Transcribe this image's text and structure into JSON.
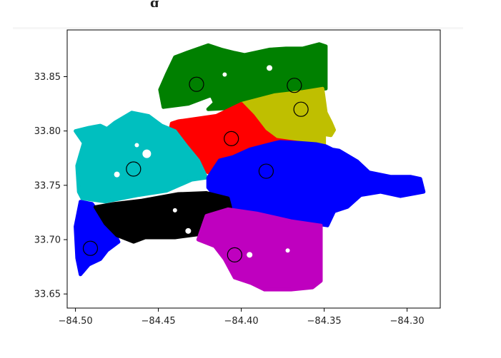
{
  "header": {
    "title_fragment": "g"
  },
  "chart_data": {
    "type": "scatter",
    "xlabel": "",
    "ylabel": "",
    "xlim": [
      -84.505,
      -84.28
    ],
    "ylim": [
      33.637,
      33.893
    ],
    "x_ticks": [
      -84.5,
      -84.45,
      -84.4,
      -84.35,
      -84.3
    ],
    "x_tick_labels": [
      "−84.50",
      "−84.45",
      "−84.40",
      "−84.35",
      "−84.30"
    ],
    "y_ticks": [
      33.65,
      33.7,
      33.75,
      33.8,
      33.85
    ],
    "y_tick_labels": [
      "33.65",
      "33.70",
      "33.75",
      "33.80",
      "33.85"
    ],
    "grid": false,
    "series": [
      {
        "color": "#008000",
        "centroids": [
          {
            "x": -84.427,
            "y": 33.843
          },
          {
            "x": -84.368,
            "y": 33.842
          }
        ],
        "region": [
          [
            -84.416,
            33.826
          ],
          [
            -84.418,
            33.833
          ],
          [
            -84.432,
            33.825
          ],
          [
            -84.447,
            33.822
          ],
          [
            -84.449,
            33.838
          ],
          [
            -84.445,
            33.852
          ],
          [
            -84.44,
            33.868
          ],
          [
            -84.433,
            33.872
          ],
          [
            -84.42,
            33.879
          ],
          [
            -84.412,
            33.875
          ],
          [
            -84.404,
            33.872
          ],
          [
            -84.398,
            33.87
          ],
          [
            -84.383,
            33.875
          ],
          [
            -84.373,
            33.876
          ],
          [
            -84.363,
            33.876
          ],
          [
            -84.353,
            33.88
          ],
          [
            -84.349,
            33.878
          ],
          [
            -84.349,
            33.839
          ],
          [
            -84.367,
            33.836
          ],
          [
            -84.38,
            33.833
          ],
          [
            -84.4,
            33.825
          ],
          [
            -84.407,
            33.821
          ],
          [
            -84.42,
            33.82
          ]
        ]
      },
      {
        "color": "#bfbf00",
        "centroids": [
          {
            "x": -84.364,
            "y": 33.82
          }
        ],
        "region": [
          [
            -84.4,
            33.825
          ],
          [
            -84.38,
            33.833
          ],
          [
            -84.363,
            33.836
          ],
          [
            -84.351,
            33.839
          ],
          [
            -84.349,
            33.817
          ],
          [
            -84.346,
            33.808
          ],
          [
            -84.344,
            33.801
          ],
          [
            -84.346,
            33.796
          ],
          [
            -84.35,
            33.797
          ],
          [
            -84.35,
            33.786
          ],
          [
            -84.355,
            33.788
          ],
          [
            -84.373,
            33.79
          ],
          [
            -84.38,
            33.791
          ],
          [
            -84.39,
            33.801
          ],
          [
            -84.395,
            33.811
          ]
        ]
      },
      {
        "color": "#ff0000",
        "centroids": [
          {
            "x": -84.406,
            "y": 33.793
          }
        ],
        "region": [
          [
            -84.442,
            33.807
          ],
          [
            -84.438,
            33.809
          ],
          [
            -84.415,
            33.814
          ],
          [
            -84.4,
            33.825
          ],
          [
            -84.393,
            33.814
          ],
          [
            -84.386,
            33.8
          ],
          [
            -84.379,
            33.792
          ],
          [
            -84.365,
            33.789
          ],
          [
            -84.379,
            33.786
          ],
          [
            -84.395,
            33.783
          ],
          [
            -84.405,
            33.776
          ],
          [
            -84.413,
            33.772
          ],
          [
            -84.42,
            33.762
          ],
          [
            -84.428,
            33.768
          ],
          [
            -84.434,
            33.782
          ],
          [
            -84.443,
            33.799
          ]
        ]
      },
      {
        "color": "#00bfbf",
        "centroids": [
          {
            "x": -84.465,
            "y": 33.765
          }
        ],
        "region": [
          [
            -84.492,
            33.803
          ],
          [
            -84.485,
            33.805
          ],
          [
            -84.481,
            33.802
          ],
          [
            -84.476,
            33.808
          ],
          [
            -84.466,
            33.817
          ],
          [
            -84.456,
            33.814
          ],
          [
            -84.448,
            33.805
          ],
          [
            -84.44,
            33.8
          ],
          [
            -84.433,
            33.786
          ],
          [
            -84.426,
            33.773
          ],
          [
            -84.421,
            33.757
          ],
          [
            -84.43,
            33.755
          ],
          [
            -84.445,
            33.745
          ],
          [
            -84.462,
            33.741
          ],
          [
            -84.482,
            33.735
          ],
          [
            -84.496,
            33.738
          ],
          [
            -84.498,
            33.744
          ],
          [
            -84.499,
            33.768
          ],
          [
            -84.495,
            33.789
          ],
          [
            -84.5,
            33.8
          ]
        ]
      },
      {
        "color": "#0000ff",
        "centroids": [
          {
            "x": -84.385,
            "y": 33.763
          },
          {
            "x": -84.491,
            "y": 33.692
          }
        ],
        "region": [
          [
            -84.42,
            33.757
          ],
          [
            -84.413,
            33.773
          ],
          [
            -84.405,
            33.776
          ],
          [
            -84.395,
            33.783
          ],
          [
            -84.385,
            33.787
          ],
          [
            -84.377,
            33.79
          ],
          [
            -84.364,
            33.789
          ],
          [
            -84.355,
            33.788
          ],
          [
            -84.349,
            33.786
          ],
          [
            -84.345,
            33.783
          ],
          [
            -84.341,
            33.782
          ],
          [
            -84.33,
            33.772
          ],
          [
            -84.323,
            33.762
          ],
          [
            -84.31,
            33.758
          ],
          [
            -84.298,
            33.758
          ],
          [
            -84.292,
            33.756
          ],
          [
            -84.29,
            33.744
          ],
          [
            -84.304,
            33.74
          ],
          [
            -84.316,
            33.744
          ],
          [
            -84.328,
            33.741
          ],
          [
            -84.336,
            33.73
          ],
          [
            -84.344,
            33.726
          ],
          [
            -84.348,
            33.713
          ],
          [
            -84.366,
            33.717
          ],
          [
            -84.387,
            33.725
          ],
          [
            -84.41,
            33.73
          ],
          [
            -84.42,
            33.748
          ]
        ],
        "region2": [
          [
            -84.497,
            33.735
          ],
          [
            -84.49,
            33.733
          ],
          [
            -84.484,
            33.72
          ],
          [
            -84.477,
            33.708
          ],
          [
            -84.474,
            33.698
          ],
          [
            -84.481,
            33.69
          ],
          [
            -84.485,
            33.682
          ],
          [
            -84.492,
            33.677
          ],
          [
            -84.497,
            33.668
          ],
          [
            -84.499,
            33.683
          ],
          [
            -84.5,
            33.712
          ]
        ]
      },
      {
        "color": "#000000",
        "centroids": [],
        "region": [
          [
            -84.488,
            33.73
          ],
          [
            -84.477,
            33.733
          ],
          [
            -84.46,
            33.736
          ],
          [
            -84.438,
            33.742
          ],
          [
            -84.421,
            33.743
          ],
          [
            -84.408,
            33.738
          ],
          [
            -84.406,
            33.726
          ],
          [
            -84.411,
            33.72
          ],
          [
            -84.425,
            33.705
          ],
          [
            -84.44,
            33.702
          ],
          [
            -84.458,
            33.702
          ],
          [
            -84.465,
            33.698
          ],
          [
            -84.475,
            33.704
          ],
          [
            -84.482,
            33.715
          ]
        ]
      },
      {
        "color": "#bf00bf",
        "centroids": [
          {
            "x": -84.404,
            "y": 33.686
          }
        ],
        "region": [
          [
            -84.421,
            33.722
          ],
          [
            -84.408,
            33.728
          ],
          [
            -84.39,
            33.724
          ],
          [
            -84.37,
            33.717
          ],
          [
            -84.352,
            33.713
          ],
          [
            -84.352,
            33.69
          ],
          [
            -84.352,
            33.662
          ],
          [
            -84.357,
            33.656
          ],
          [
            -84.37,
            33.654
          ],
          [
            -84.386,
            33.654
          ],
          [
            -84.394,
            33.66
          ],
          [
            -84.404,
            33.665
          ],
          [
            -84.41,
            33.682
          ],
          [
            -84.416,
            33.694
          ],
          [
            -84.426,
            33.7
          ]
        ]
      }
    ]
  }
}
